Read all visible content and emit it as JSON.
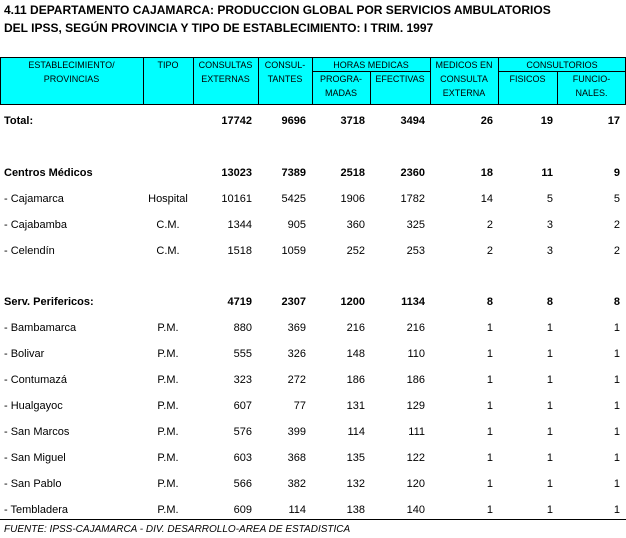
{
  "title": [
    "4.11  DEPARTAMENTO CAJAMARCA: PRODUCCION GLOBAL POR SERVICIOS AMBULATORIOS",
    "DEL IPSS, SEGÚN  PROVINCIA Y TIPO DE ESTABLECIMIENTO: I TRIM. 1997"
  ],
  "header": {
    "establecimiento": [
      "ESTABLECIMIENTO/",
      "PROVINCIAS"
    ],
    "tipo": [
      "TIPO"
    ],
    "consultas": [
      "CONSULTAS",
      "EXTERNAS"
    ],
    "consultantes": [
      "CONSUL-",
      "TANTES"
    ],
    "horas": [
      "HORAS MEDICAS"
    ],
    "programadas": [
      "PROGRA-",
      "MADAS"
    ],
    "efectivas": [
      "EFECTIVAS"
    ],
    "medicos": [
      "MEDICOS EN",
      "CONSULTA",
      "EXTERNA"
    ],
    "consultorios": [
      "CONSULTORIOS"
    ],
    "fisicos": [
      "FISICOS"
    ],
    "funcionales": [
      "FUNCIO-",
      "NALES."
    ]
  },
  "total": {
    "label": "Total:",
    "values": [
      17742,
      9696,
      3718,
      3494,
      26,
      19,
      17
    ]
  },
  "sections": [
    {
      "label": "Centros Médicos",
      "values": [
        13023,
        7389,
        2518,
        2360,
        18,
        11,
        9
      ],
      "rows": [
        {
          "label": " - Cajamarca",
          "tipo": "Hospital",
          "values": [
            10161,
            5425,
            1906,
            1782,
            14,
            5,
            5
          ]
        },
        {
          "label": " - Cajabamba",
          "tipo": "C.M.",
          "values": [
            1344,
            905,
            360,
            325,
            2,
            3,
            2
          ]
        },
        {
          "label": " - Celendín",
          "tipo": "C.M.",
          "values": [
            1518,
            1059,
            252,
            253,
            2,
            3,
            2
          ]
        }
      ]
    },
    {
      "label": "Serv. Perifericos:",
      "values": [
        4719,
        2307,
        1200,
        1134,
        8,
        8,
        8
      ],
      "rows": [
        {
          "label": " - Bambamarca",
          "tipo": "P.M.",
          "values": [
            880,
            369,
            216,
            216,
            1,
            1,
            1
          ]
        },
        {
          "label": " - Bolivar",
          "tipo": "P.M.",
          "values": [
            555,
            326,
            148,
            110,
            1,
            1,
            1
          ]
        },
        {
          "label": " - Contumazá",
          "tipo": "P.M.",
          "values": [
            323,
            272,
            186,
            186,
            1,
            1,
            1
          ]
        },
        {
          "label": " - Hualgayoc",
          "tipo": "P.M.",
          "values": [
            607,
            77,
            131,
            129,
            1,
            1,
            1
          ]
        },
        {
          "label": " - San Marcos",
          "tipo": "P.M.",
          "values": [
            576,
            399,
            114,
            111,
            1,
            1,
            1
          ]
        },
        {
          "label": " - San Miguel",
          "tipo": "P.M.",
          "values": [
            603,
            368,
            135,
            122,
            1,
            1,
            1
          ]
        },
        {
          "label": " - San Pablo",
          "tipo": "P.M.",
          "values": [
            566,
            382,
            132,
            120,
            1,
            1,
            1
          ]
        },
        {
          "label": " - Tembladera",
          "tipo": "P.M.",
          "values": [
            609,
            114,
            138,
            140,
            1,
            1,
            1
          ]
        }
      ]
    }
  ],
  "source": "FUENTE: IPSS-CAJAMARCA - DIV. DESARROLLO-AREA DE ESTADISTICA"
}
